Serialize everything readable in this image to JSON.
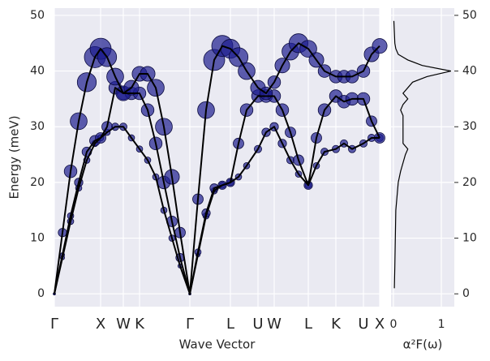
{
  "chart_data": [
    {
      "type": "band",
      "xlabel": "Wave Vector",
      "ylabel": "Energy (meV)",
      "xlim": [
        0,
        4.01
      ],
      "ylim": [
        -2.3,
        51.3
      ],
      "grid": true,
      "xticks": [
        {
          "value": 0,
          "label": "Γ"
        },
        {
          "value": 0.57,
          "label": "X"
        },
        {
          "value": 0.85,
          "label": "W"
        },
        {
          "value": 1.05,
          "label": "K"
        },
        {
          "value": 1.67,
          "label": "Γ"
        },
        {
          "value": 2.17,
          "label": "L"
        },
        {
          "value": 2.51,
          "label": "U"
        },
        {
          "value": 2.71,
          "label": "W"
        },
        {
          "value": 3.13,
          "label": "L"
        },
        {
          "value": 3.47,
          "label": "K"
        },
        {
          "value": 3.81,
          "label": "U"
        },
        {
          "value": 4.01,
          "label": "X"
        }
      ],
      "yticks": [
        0,
        10,
        20,
        30,
        40,
        50
      ],
      "x": [
        0,
        0.1,
        0.2,
        0.3,
        0.4,
        0.5,
        0.57,
        0.65,
        0.75,
        0.85,
        0.95,
        1.05,
        1.15,
        1.25,
        1.35,
        1.45,
        1.55,
        1.67,
        1.77,
        1.87,
        1.97,
        2.07,
        2.17,
        2.27,
        2.37,
        2.51,
        2.61,
        2.71,
        2.81,
        2.91,
        3.01,
        3.13,
        3.23,
        3.33,
        3.47,
        3.57,
        3.67,
        3.81,
        3.91,
        4.01
      ],
      "series": [
        {
          "color": "#1c1c8e",
          "values": [
            0,
            6.5,
            13,
            19,
            24,
            27,
            28,
            29,
            30,
            30,
            28,
            26,
            24,
            21,
            15,
            10,
            5,
            0,
            7,
            14,
            18.5,
            19.5,
            20,
            21,
            23,
            26,
            29,
            30,
            27,
            24,
            21.5,
            19.5,
            23,
            25.5,
            26,
            27,
            26,
            27,
            28,
            28
          ],
          "sizes": [
            1,
            2,
            3,
            3,
            3,
            3,
            3,
            3,
            3.5,
            3.5,
            3,
            3,
            3,
            3,
            3,
            3,
            2,
            1,
            2,
            3,
            3,
            3,
            3,
            3,
            3,
            3.5,
            4,
            4,
            4,
            3.5,
            3,
            3,
            3,
            3.5,
            3.5,
            3.5,
            3.5,
            3.5,
            3.5,
            3.5
          ]
        },
        {
          "color": "#1c1c8e",
          "values": [
            0,
            7,
            14,
            20,
            25.5,
            27.5,
            28,
            30,
            37,
            36,
            36,
            36,
            33,
            27,
            20,
            13,
            6.5,
            0,
            7.5,
            14.5,
            19,
            19.5,
            20,
            27,
            33,
            35.5,
            35.5,
            35.5,
            33,
            29,
            24,
            19.5,
            28,
            33,
            35.5,
            34.5,
            35,
            35,
            31,
            28
          ],
          "sizes": [
            1,
            2,
            3,
            4,
            4.5,
            5,
            5,
            5,
            6,
            6,
            6,
            6,
            6,
            6,
            6,
            5,
            4,
            1,
            3,
            4,
            4,
            4,
            4,
            5,
            6,
            6,
            6,
            6,
            6,
            5,
            5,
            4,
            5,
            6,
            6,
            6,
            6,
            6,
            5,
            5
          ]
        },
        {
          "color": "#1c1c8e",
          "values": [
            0,
            11,
            22,
            31,
            38,
            42.5,
            44,
            42.5,
            39,
            36,
            37,
            39.5,
            39.5,
            37,
            30,
            21,
            11,
            0,
            17,
            33,
            42,
            44.5,
            44,
            42.5,
            40,
            37,
            36,
            38,
            41,
            43.5,
            45,
            44,
            42,
            40,
            39,
            39,
            39,
            40,
            43,
            44.5
          ],
          "sizes": [
            1,
            4,
            6,
            8,
            9,
            10,
            10,
            9,
            8,
            7,
            7,
            7,
            7,
            8,
            8,
            7,
            5,
            1,
            5,
            8,
            10,
            10,
            9,
            9,
            8,
            7,
            6,
            6,
            7,
            8,
            9,
            8,
            7,
            6,
            6,
            6,
            6,
            6,
            7,
            7
          ]
        }
      ]
    },
    {
      "type": "dos",
      "xlabel": "α²F(ω)",
      "xlim": [
        -0.05,
        1.27
      ],
      "ylim": [
        -2.3,
        51.3
      ],
      "grid": true,
      "xticks": [
        0,
        1
      ],
      "yticks": [
        0,
        10,
        20,
        30,
        40,
        50
      ],
      "color": "#000000",
      "y": [
        1,
        5,
        10,
        15,
        17,
        20,
        22,
        25,
        26,
        27,
        28,
        30,
        32,
        33,
        34,
        35,
        36,
        37,
        38,
        39,
        40,
        41,
        42,
        43,
        44,
        45,
        47,
        49
      ],
      "values": [
        0.02,
        0.03,
        0.04,
        0.05,
        0.07,
        0.1,
        0.15,
        0.25,
        0.3,
        0.2,
        0.2,
        0.2,
        0.2,
        0.15,
        0.2,
        0.3,
        0.2,
        0.3,
        0.4,
        0.7,
        1.2,
        0.6,
        0.3,
        0.1,
        0.05,
        0.03,
        0.02,
        0.01
      ]
    }
  ]
}
